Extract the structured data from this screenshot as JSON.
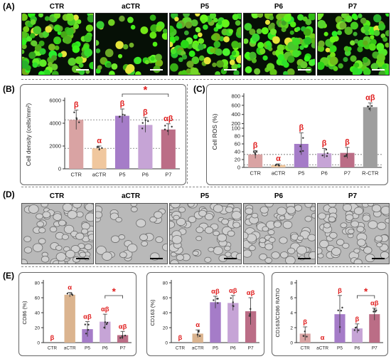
{
  "panel_labels": {
    "a": "(A)",
    "b": "(B)",
    "c": "(C)",
    "d": "(D)",
    "e": "(E)"
  },
  "image_titles": [
    "CTR",
    "aCTR",
    "P5",
    "P6",
    "P7"
  ],
  "chart_data": [
    {
      "id": "density",
      "type": "bar",
      "categories": [
        "CTR",
        "aCTR",
        "P5",
        "P6",
        "P7"
      ],
      "values": [
        4300,
        1800,
        4650,
        3850,
        3450
      ],
      "errors": [
        850,
        200,
        600,
        650,
        500
      ],
      "ylabel": "Cell density (cells/mm²)",
      "ylim": [
        0,
        6000
      ],
      "yticks": [
        "0",
        "2000",
        "4000",
        "6000"
      ],
      "annotations": [
        "β",
        "α",
        "β",
        "β",
        "αβ"
      ],
      "colors": [
        "#d9a3a3",
        "#f0c79e",
        "#a57cc8",
        "#c6a4d6",
        "#bb6d86"
      ],
      "significance": "*",
      "ref_lines": [
        4300,
        1800
      ]
    },
    {
      "id": "ros",
      "type": "bar",
      "categories": [
        "CTR",
        "aCTR",
        "P5",
        "P6",
        "P7",
        "R-CTR"
      ],
      "values": [
        33,
        6,
        60,
        36,
        37,
        560
      ],
      "errors": [
        10,
        3,
        28,
        12,
        14,
        90
      ],
      "ylabel": "Cell ROS (%)",
      "yticks": [
        "0",
        "20",
        "40",
        "60",
        "80",
        "100",
        "200",
        "400",
        "600",
        "800"
      ],
      "annotations": [
        "β",
        "α",
        "β",
        "β",
        "β",
        "αβ"
      ],
      "colors": [
        "#d9a3a3",
        "#f0c79e",
        "#a57cc8",
        "#c6a4d6",
        "#bb6d86",
        "#9e9e9e"
      ],
      "ref_lines": [
        33,
        6
      ]
    },
    {
      "id": "cd86",
      "type": "bar",
      "categories": [
        "CTR",
        "aCTR",
        "P5",
        "P6",
        "P7"
      ],
      "values": [
        0,
        64,
        18,
        28,
        10
      ],
      "errors": [
        0,
        3,
        10,
        10,
        5
      ],
      "ylabel": "CD86 (%)",
      "ylim": [
        0,
        80
      ],
      "yticks": [
        "0",
        "20",
        "40",
        "60",
        "80"
      ],
      "annotations": [
        "β",
        "α",
        "αβ",
        "αβ",
        "αβ"
      ],
      "colors": [
        "#d9a3a3",
        "#dbb48f",
        "#a57cc8",
        "#c6a4d6",
        "#bb6d86"
      ],
      "significance": "*"
    },
    {
      "id": "cd163",
      "type": "bar",
      "categories": [
        "CTR",
        "aCTR",
        "P5",
        "P6",
        "P7"
      ],
      "values": [
        0,
        12,
        54,
        53,
        42
      ],
      "errors": [
        0,
        5,
        8,
        10,
        18
      ],
      "ylabel": "CD163 (%)",
      "ylim": [
        0,
        80
      ],
      "yticks": [
        "0",
        "20",
        "40",
        "60",
        "80"
      ],
      "annotations": [
        "β",
        "α",
        "αβ",
        "αβ",
        "αβ"
      ],
      "colors": [
        "#d9a3a3",
        "#dbb48f",
        "#a57cc8",
        "#c6a4d6",
        "#bb6d86"
      ]
    },
    {
      "id": "ratio",
      "type": "bar",
      "categories": [
        "CTR",
        "aCTR",
        "P5",
        "P6",
        "P7"
      ],
      "values": [
        1.2,
        0,
        3.8,
        1.9,
        3.8
      ],
      "errors": [
        0.9,
        0,
        2.5,
        0.6,
        0.8
      ],
      "ylabel": "CD163/CD86 RATIO",
      "ylim": [
        0,
        8
      ],
      "yticks": [
        "0",
        "2",
        "4",
        "6",
        "8"
      ],
      "annotations": [
        "β",
        "α",
        "β",
        "β",
        "αβ"
      ],
      "colors": [
        "#d9a3a3",
        "#dbb48f",
        "#a57cc8",
        "#c6a4d6",
        "#bb6d86"
      ],
      "significance": "*"
    }
  ]
}
